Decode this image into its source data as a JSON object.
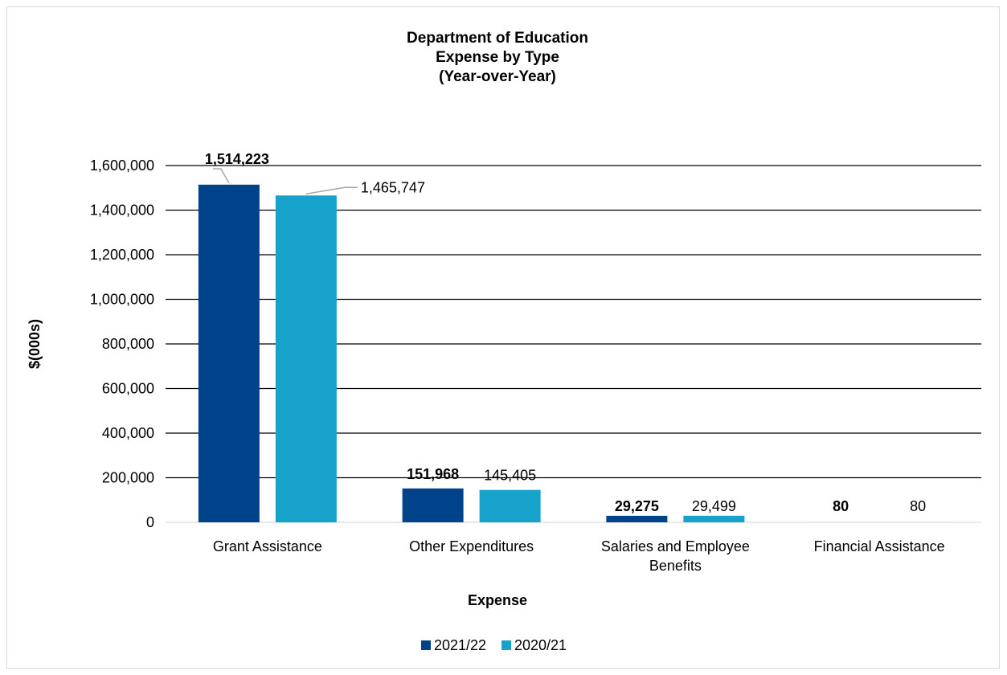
{
  "chart_data": {
    "type": "bar",
    "title": [
      "Department of Education",
      "Expense by Type",
      "(Year-over-Year)"
    ],
    "xlabel": "Expense",
    "ylabel": "$(000s)",
    "categories": [
      [
        "Grant Assistance"
      ],
      [
        "Other Expenditures"
      ],
      [
        "Salaries and Employee",
        "Benefits"
      ],
      [
        "Financial Assistance"
      ]
    ],
    "series": [
      {
        "name": "2021/22",
        "color": "#00438a",
        "label_weight": "bold",
        "values": [
          1514223,
          151968,
          29275,
          80
        ],
        "labels": [
          "1,514,223",
          "151,968",
          "29,275",
          "80"
        ]
      },
      {
        "name": "2020/21",
        "color": "#17a2cb",
        "label_weight": "normal",
        "values": [
          1465747,
          145405,
          29499,
          80
        ],
        "labels": [
          "1,465,747",
          "145,405",
          "29,499",
          "80"
        ]
      }
    ],
    "ylim": [
      0,
      1600000
    ],
    "yticks": [
      0,
      200000,
      400000,
      600000,
      800000,
      1000000,
      1200000,
      1400000,
      1600000
    ],
    "ytick_labels": [
      "0",
      "200,000",
      "400,000",
      "600,000",
      "800,000",
      "1,000,000",
      "1,200,000",
      "1,400,000",
      "1,600,000"
    ],
    "grid": true,
    "legend": "bottom"
  }
}
